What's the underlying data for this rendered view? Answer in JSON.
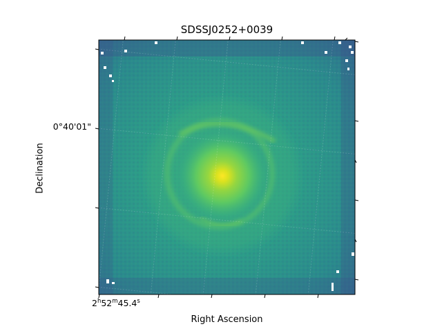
{
  "title": "SDSSJ0252+0039",
  "axes": {
    "xlabel": "Right Ascension",
    "ylabel": "Declination",
    "x_tick": {
      "h": "2",
      "h_unit": "h",
      "m": "52",
      "m_unit": "m",
      "s": "45.4",
      "s_unit": "s"
    },
    "y_tick": "0°40'01\""
  },
  "image": {
    "colormap": "viridis",
    "subject": "galaxy with Einstein ring",
    "grid": true
  }
}
